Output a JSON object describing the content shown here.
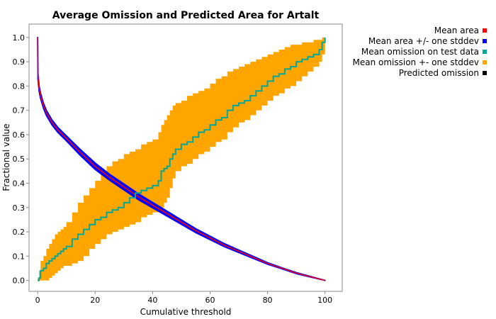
{
  "chart_data": {
    "type": "line",
    "title": "Average Omission and Predicted Area for Artalt",
    "xlabel": "Cumulative threshold",
    "ylabel": "Fractional value",
    "xlim": [
      -3,
      106
    ],
    "ylim": [
      -0.045,
      1.055
    ],
    "x_ticks": [
      0,
      20,
      40,
      60,
      80,
      100
    ],
    "x_tick_labels": [
      "0",
      "20",
      "40",
      "60",
      "80",
      "100"
    ],
    "y_ticks": [
      0.0,
      0.1,
      0.2,
      0.3,
      0.4,
      0.5,
      0.6,
      0.7,
      0.8,
      0.9,
      1.0
    ],
    "y_tick_labels": [
      "0.0",
      "0.1",
      "0.2",
      "0.3",
      "0.4",
      "0.5",
      "0.6",
      "0.7",
      "0.8",
      "0.9",
      "1.0"
    ],
    "legend_position": "top-right-outside",
    "series": [
      {
        "name": "Mean area",
        "color": "#ff0000",
        "x": [
          0,
          0.1,
          0.5,
          1,
          2,
          3,
          5,
          7,
          10,
          15,
          20,
          25,
          30,
          35,
          40,
          45,
          50,
          55,
          60,
          65,
          70,
          75,
          80,
          85,
          90,
          95,
          100
        ],
        "values": [
          1.0,
          0.84,
          0.79,
          0.76,
          0.72,
          0.69,
          0.65,
          0.62,
          0.585,
          0.525,
          0.47,
          0.425,
          0.385,
          0.345,
          0.31,
          0.275,
          0.24,
          0.205,
          0.175,
          0.145,
          0.12,
          0.095,
          0.07,
          0.05,
          0.03,
          0.015,
          0.0
        ]
      },
      {
        "name": "Mean area +/- one stddev",
        "color": "#0000ff",
        "x": [
          0,
          0.1,
          0.5,
          1,
          2,
          3,
          5,
          7,
          10,
          15,
          20,
          25,
          30,
          35,
          40,
          45,
          50,
          55,
          60,
          65,
          70,
          75,
          80,
          85,
          90,
          95,
          100
        ],
        "upper": [
          1.0,
          0.85,
          0.8,
          0.77,
          0.73,
          0.7,
          0.66,
          0.63,
          0.595,
          0.537,
          0.483,
          0.437,
          0.397,
          0.357,
          0.321,
          0.285,
          0.249,
          0.213,
          0.182,
          0.151,
          0.125,
          0.099,
          0.073,
          0.052,
          0.032,
          0.016,
          0.0
        ],
        "lower": [
          0.99,
          0.83,
          0.78,
          0.75,
          0.71,
          0.68,
          0.64,
          0.61,
          0.575,
          0.513,
          0.457,
          0.413,
          0.373,
          0.333,
          0.299,
          0.265,
          0.231,
          0.197,
          0.168,
          0.139,
          0.115,
          0.091,
          0.067,
          0.048,
          0.028,
          0.014,
          0.0
        ]
      },
      {
        "name": "Mean omission on test data",
        "color": "#00a89a",
        "x": [
          0,
          0.5,
          1,
          2,
          3,
          4,
          5,
          6,
          7,
          8,
          9,
          10,
          12,
          14,
          16,
          18,
          20,
          22,
          24,
          26,
          28,
          30,
          32,
          34,
          36,
          38,
          40,
          42,
          43,
          44,
          45,
          46,
          47,
          48,
          50,
          52,
          54,
          56,
          58,
          60,
          62,
          64,
          66,
          68,
          70,
          72,
          74,
          76,
          78,
          80,
          82,
          84,
          86,
          88,
          90,
          92,
          94,
          96,
          98,
          99,
          100
        ],
        "values": [
          0.0,
          0.01,
          0.04,
          0.05,
          0.07,
          0.08,
          0.09,
          0.1,
          0.11,
          0.12,
          0.13,
          0.14,
          0.17,
          0.19,
          0.21,
          0.23,
          0.25,
          0.26,
          0.28,
          0.29,
          0.3,
          0.32,
          0.34,
          0.36,
          0.37,
          0.38,
          0.39,
          0.41,
          0.45,
          0.46,
          0.47,
          0.5,
          0.52,
          0.54,
          0.56,
          0.57,
          0.59,
          0.61,
          0.62,
          0.64,
          0.66,
          0.67,
          0.7,
          0.72,
          0.73,
          0.74,
          0.76,
          0.78,
          0.8,
          0.82,
          0.84,
          0.85,
          0.87,
          0.88,
          0.9,
          0.91,
          0.92,
          0.93,
          0.95,
          0.98,
          1.0
        ]
      },
      {
        "name": "Mean omission +- one stddev",
        "color": "#ffa500",
        "x": [
          0,
          0.5,
          1,
          2,
          3,
          4,
          5,
          6,
          7,
          8,
          9,
          10,
          12,
          14,
          16,
          18,
          20,
          22,
          24,
          26,
          28,
          30,
          32,
          34,
          36,
          38,
          40,
          42,
          43,
          44,
          45,
          46,
          47,
          48,
          50,
          52,
          54,
          56,
          58,
          60,
          62,
          64,
          66,
          68,
          70,
          72,
          74,
          76,
          78,
          80,
          82,
          84,
          86,
          88,
          90,
          92,
          94,
          96,
          98,
          99,
          100
        ],
        "upper": [
          0.01,
          0.04,
          0.08,
          0.1,
          0.13,
          0.15,
          0.17,
          0.19,
          0.2,
          0.21,
          0.22,
          0.24,
          0.28,
          0.32,
          0.35,
          0.38,
          0.41,
          0.44,
          0.47,
          0.49,
          0.5,
          0.52,
          0.53,
          0.54,
          0.56,
          0.57,
          0.58,
          0.61,
          0.64,
          0.66,
          0.68,
          0.7,
          0.72,
          0.73,
          0.74,
          0.76,
          0.77,
          0.78,
          0.79,
          0.81,
          0.83,
          0.84,
          0.86,
          0.87,
          0.88,
          0.89,
          0.9,
          0.91,
          0.92,
          0.93,
          0.94,
          0.95,
          0.96,
          0.97,
          0.97,
          0.98,
          0.98,
          0.99,
          0.99,
          1.0,
          1.0
        ],
        "lower": [
          0.0,
          0.0,
          0.0,
          0.0,
          0.0,
          0.01,
          0.02,
          0.03,
          0.04,
          0.05,
          0.06,
          0.06,
          0.07,
          0.08,
          0.1,
          0.13,
          0.15,
          0.17,
          0.19,
          0.2,
          0.21,
          0.22,
          0.23,
          0.24,
          0.26,
          0.27,
          0.28,
          0.29,
          0.3,
          0.32,
          0.34,
          0.38,
          0.42,
          0.45,
          0.47,
          0.48,
          0.5,
          0.52,
          0.53,
          0.55,
          0.57,
          0.58,
          0.61,
          0.63,
          0.65,
          0.66,
          0.68,
          0.7,
          0.72,
          0.74,
          0.76,
          0.77,
          0.79,
          0.8,
          0.82,
          0.84,
          0.86,
          0.88,
          0.9,
          0.93,
          0.96
        ]
      },
      {
        "name": "Predicted omission",
        "color": "#000000",
        "x": [
          0,
          100
        ],
        "values": [
          0.0,
          1.0
        ]
      }
    ]
  }
}
